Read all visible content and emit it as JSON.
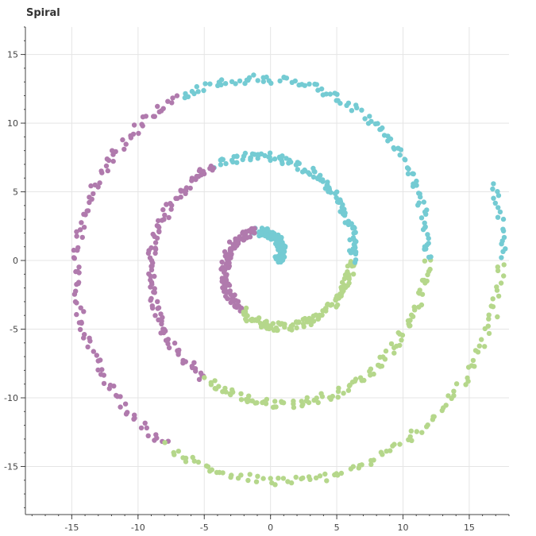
{
  "chart_data": {
    "type": "scatter",
    "title": "Spiral",
    "xlabel": "",
    "ylabel": "",
    "xlim": [
      -18.5,
      18
    ],
    "ylim": [
      -18.5,
      17
    ],
    "grid": true,
    "x_ticks": [
      -15,
      -10,
      -5,
      0,
      5,
      10,
      15
    ],
    "y_ticks": [
      -15,
      -10,
      -5,
      0,
      5,
      10,
      15
    ],
    "x_tick_labels": [
      "-15",
      "-10",
      "-5",
      "0",
      "5",
      "10",
      "15"
    ],
    "y_tick_labels": [
      "-15",
      "-10",
      "-5",
      "0",
      "5",
      "10",
      "15"
    ],
    "spiral_model": {
      "description_of_generation": "points on an Archimedean spiral r = a + b*theta, colored cyclically by thirds of each turn",
      "a": 0.5,
      "b": 0.9,
      "theta_max_radians": 19.2,
      "point_count": 1000,
      "jitter": 0.3
    },
    "series": [
      {
        "color": "#74cbd3"
      },
      {
        "color": "#b07aad"
      },
      {
        "color": "#b5d78b"
      }
    ]
  }
}
